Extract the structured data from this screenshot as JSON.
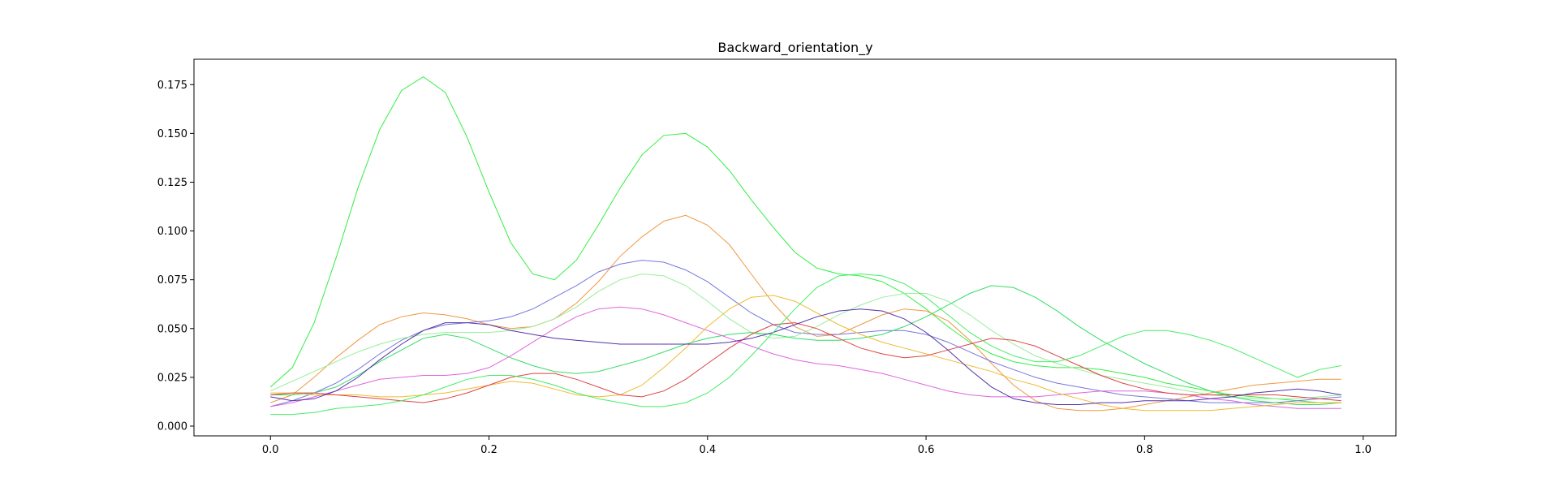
{
  "chart_data": {
    "type": "line",
    "title": "Backward_orientation_y",
    "xlabel": "",
    "ylabel": "",
    "xlim": [
      -0.07,
      1.03
    ],
    "ylim": [
      -0.005,
      0.188
    ],
    "grid": false,
    "x_ticks": [
      0.0,
      0.2,
      0.4,
      0.6,
      0.8,
      1.0
    ],
    "x_tick_labels": [
      "0.0",
      "0.2",
      "0.4",
      "0.6",
      "0.8",
      "1.0"
    ],
    "y_ticks": [
      0.0,
      0.025,
      0.05,
      0.075,
      0.1,
      0.125,
      0.15,
      0.175
    ],
    "y_tick_labels": [
      "0.000",
      "0.025",
      "0.050",
      "0.075",
      "0.100",
      "0.125",
      "0.150",
      "0.175"
    ],
    "x": [
      0.0,
      0.02,
      0.04,
      0.06,
      0.08,
      0.1,
      0.12,
      0.14,
      0.16,
      0.18,
      0.2,
      0.22,
      0.24,
      0.26,
      0.28,
      0.3,
      0.32,
      0.34,
      0.36,
      0.38,
      0.4,
      0.42,
      0.44,
      0.46,
      0.48,
      0.5,
      0.52,
      0.54,
      0.56,
      0.58,
      0.6,
      0.62,
      0.64,
      0.66,
      0.68,
      0.7,
      0.72,
      0.74,
      0.76,
      0.78,
      0.8,
      0.82,
      0.84,
      0.86,
      0.88,
      0.9,
      0.92,
      0.94,
      0.96,
      0.98
    ],
    "series": [
      {
        "color": "#33ee44",
        "values": [
          0.02,
          0.03,
          0.053,
          0.086,
          0.122,
          0.152,
          0.172,
          0.179,
          0.171,
          0.148,
          0.12,
          0.094,
          0.078,
          0.075,
          0.085,
          0.103,
          0.122,
          0.139,
          0.149,
          0.15,
          0.143,
          0.131,
          0.116,
          0.102,
          0.089,
          0.081,
          0.078,
          0.077,
          0.074,
          0.068,
          0.06,
          0.051,
          0.043,
          0.037,
          0.033,
          0.031,
          0.03,
          0.03,
          0.029,
          0.027,
          0.025,
          0.022,
          0.02,
          0.018,
          0.016,
          0.015,
          0.014,
          0.013,
          0.012,
          0.012
        ]
      },
      {
        "color": "#ee9944",
        "values": [
          0.012,
          0.016,
          0.025,
          0.035,
          0.044,
          0.052,
          0.056,
          0.058,
          0.057,
          0.055,
          0.052,
          0.05,
          0.051,
          0.055,
          0.063,
          0.074,
          0.087,
          0.097,
          0.105,
          0.108,
          0.103,
          0.093,
          0.078,
          0.063,
          0.051,
          0.046,
          0.047,
          0.052,
          0.057,
          0.06,
          0.059,
          0.054,
          0.044,
          0.032,
          0.021,
          0.013,
          0.009,
          0.008,
          0.008,
          0.009,
          0.011,
          0.013,
          0.015,
          0.017,
          0.019,
          0.021,
          0.022,
          0.023,
          0.024,
          0.024
        ]
      },
      {
        "color": "#7777dd",
        "values": [
          0.01,
          0.013,
          0.017,
          0.022,
          0.029,
          0.037,
          0.044,
          0.049,
          0.052,
          0.053,
          0.054,
          0.056,
          0.06,
          0.066,
          0.072,
          0.079,
          0.083,
          0.085,
          0.084,
          0.08,
          0.074,
          0.066,
          0.058,
          0.052,
          0.048,
          0.047,
          0.047,
          0.048,
          0.049,
          0.049,
          0.047,
          0.043,
          0.038,
          0.033,
          0.029,
          0.025,
          0.022,
          0.02,
          0.018,
          0.016,
          0.015,
          0.014,
          0.013,
          0.012,
          0.012,
          0.012,
          0.012,
          0.013,
          0.014,
          0.015
        ]
      },
      {
        "color": "#99ee99",
        "values": [
          0.018,
          0.023,
          0.028,
          0.033,
          0.038,
          0.042,
          0.045,
          0.047,
          0.048,
          0.048,
          0.048,
          0.049,
          0.051,
          0.055,
          0.061,
          0.069,
          0.075,
          0.078,
          0.077,
          0.072,
          0.064,
          0.055,
          0.048,
          0.045,
          0.046,
          0.051,
          0.057,
          0.062,
          0.066,
          0.068,
          0.068,
          0.064,
          0.057,
          0.049,
          0.042,
          0.036,
          0.032,
          0.029,
          0.026,
          0.024,
          0.022,
          0.02,
          0.018,
          0.016,
          0.015,
          0.014,
          0.014,
          0.014,
          0.015,
          0.016
        ]
      },
      {
        "color": "#33dd66",
        "values": [
          0.016,
          0.016,
          0.017,
          0.02,
          0.026,
          0.033,
          0.039,
          0.045,
          0.047,
          0.045,
          0.04,
          0.035,
          0.031,
          0.028,
          0.027,
          0.028,
          0.031,
          0.034,
          0.038,
          0.042,
          0.045,
          0.047,
          0.048,
          0.047,
          0.045,
          0.044,
          0.044,
          0.045,
          0.047,
          0.051,
          0.056,
          0.062,
          0.068,
          0.072,
          0.071,
          0.066,
          0.059,
          0.051,
          0.044,
          0.038,
          0.032,
          0.027,
          0.022,
          0.018,
          0.015,
          0.013,
          0.012,
          0.011,
          0.011,
          0.012
        ]
      },
      {
        "color": "#dd66dd",
        "values": [
          0.01,
          0.012,
          0.015,
          0.018,
          0.021,
          0.024,
          0.025,
          0.026,
          0.026,
          0.027,
          0.03,
          0.036,
          0.043,
          0.05,
          0.056,
          0.06,
          0.061,
          0.06,
          0.057,
          0.053,
          0.049,
          0.045,
          0.041,
          0.037,
          0.034,
          0.032,
          0.031,
          0.029,
          0.027,
          0.024,
          0.021,
          0.018,
          0.016,
          0.015,
          0.015,
          0.015,
          0.016,
          0.017,
          0.018,
          0.018,
          0.018,
          0.017,
          0.016,
          0.014,
          0.013,
          0.011,
          0.01,
          0.009,
          0.009,
          0.009
        ]
      },
      {
        "color": "#eebb33",
        "values": [
          0.017,
          0.017,
          0.016,
          0.016,
          0.016,
          0.015,
          0.015,
          0.016,
          0.017,
          0.019,
          0.021,
          0.023,
          0.022,
          0.019,
          0.016,
          0.015,
          0.016,
          0.021,
          0.03,
          0.04,
          0.051,
          0.06,
          0.066,
          0.067,
          0.064,
          0.058,
          0.052,
          0.047,
          0.043,
          0.04,
          0.037,
          0.034,
          0.031,
          0.028,
          0.024,
          0.021,
          0.017,
          0.014,
          0.011,
          0.009,
          0.008,
          0.008,
          0.008,
          0.008,
          0.009,
          0.01,
          0.011,
          0.012,
          0.012,
          0.012
        ]
      },
      {
        "color": "#dd4444",
        "values": [
          0.016,
          0.017,
          0.017,
          0.016,
          0.015,
          0.014,
          0.013,
          0.012,
          0.014,
          0.017,
          0.021,
          0.025,
          0.027,
          0.027,
          0.024,
          0.02,
          0.016,
          0.015,
          0.018,
          0.024,
          0.032,
          0.04,
          0.047,
          0.052,
          0.053,
          0.05,
          0.045,
          0.04,
          0.037,
          0.035,
          0.036,
          0.039,
          0.042,
          0.045,
          0.044,
          0.041,
          0.036,
          0.031,
          0.026,
          0.022,
          0.019,
          0.017,
          0.016,
          0.016,
          0.016,
          0.016,
          0.016,
          0.015,
          0.014,
          0.013
        ]
      },
      {
        "color": "#5533aa",
        "values": [
          0.015,
          0.013,
          0.014,
          0.018,
          0.025,
          0.034,
          0.042,
          0.049,
          0.053,
          0.053,
          0.052,
          0.049,
          0.047,
          0.045,
          0.044,
          0.043,
          0.042,
          0.042,
          0.042,
          0.042,
          0.042,
          0.043,
          0.045,
          0.048,
          0.052,
          0.056,
          0.059,
          0.06,
          0.059,
          0.055,
          0.048,
          0.039,
          0.029,
          0.02,
          0.014,
          0.012,
          0.011,
          0.011,
          0.012,
          0.012,
          0.013,
          0.013,
          0.013,
          0.014,
          0.015,
          0.017,
          0.018,
          0.019,
          0.018,
          0.016
        ]
      },
      {
        "color": "#44ee66",
        "values": [
          0.006,
          0.006,
          0.007,
          0.009,
          0.01,
          0.011,
          0.013,
          0.016,
          0.02,
          0.024,
          0.026,
          0.026,
          0.024,
          0.021,
          0.017,
          0.014,
          0.012,
          0.01,
          0.01,
          0.012,
          0.017,
          0.025,
          0.036,
          0.048,
          0.06,
          0.071,
          0.077,
          0.078,
          0.077,
          0.073,
          0.066,
          0.057,
          0.048,
          0.041,
          0.036,
          0.033,
          0.033,
          0.036,
          0.041,
          0.046,
          0.049,
          0.049,
          0.047,
          0.044,
          0.04,
          0.035,
          0.03,
          0.025,
          0.029,
          0.031
        ]
      }
    ]
  }
}
